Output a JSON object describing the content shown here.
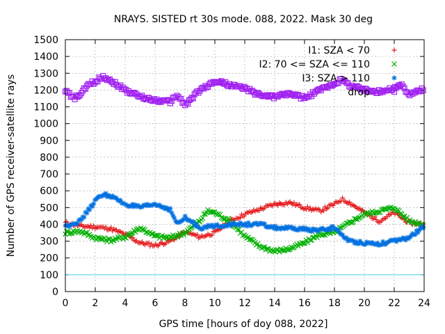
{
  "chart_data": {
    "type": "scatter",
    "title": "NRAYS. SISTED rt 30s mode. 088, 2022. Mask 30 deg",
    "xlabel": "GPS time [hours of doy 088, 2022]",
    "ylabel": "Number of GPS receiver-satellite rays",
    "xlim": [
      0,
      24
    ],
    "ylim": [
      0,
      1500
    ],
    "x_ticks": [
      "0",
      "2",
      "4",
      "6",
      "8",
      "10",
      "12",
      "14",
      "16",
      "18",
      "20",
      "22",
      "24"
    ],
    "y_ticks": [
      "0",
      "100",
      "200",
      "300",
      "400",
      "500",
      "600",
      "700",
      "800",
      "900",
      "1000",
      "1100",
      "1200",
      "1300",
      "1400",
      "1500"
    ],
    "grid": true,
    "legend_position": "top-right",
    "series": [
      {
        "name": "I1: SZA < 70",
        "marker": "plus",
        "color": "#e41a1c",
        "x": [
          0,
          1,
          2,
          3,
          4,
          5,
          6,
          7,
          8,
          9,
          10,
          11,
          12,
          13,
          14,
          15,
          16,
          17,
          18,
          18.5,
          19,
          20,
          21,
          22,
          23,
          24
        ],
        "y": [
          410,
          390,
          385,
          375,
          340,
          290,
          275,
          300,
          355,
          325,
          350,
          420,
          460,
          490,
          520,
          530,
          500,
          480,
          520,
          550,
          530,
          470,
          420,
          470,
          410,
          400
        ]
      },
      {
        "name": "I2: 70 <= SZA <= 110",
        "marker": "cross",
        "color": "#00b000",
        "x": [
          0,
          1,
          2,
          3,
          4,
          5,
          6,
          7,
          8,
          9,
          9.5,
          10,
          11,
          12,
          13,
          14,
          15,
          16,
          17,
          18,
          19,
          20,
          21,
          22,
          23,
          24
        ],
        "y": [
          350,
          360,
          320,
          305,
          325,
          380,
          330,
          320,
          350,
          420,
          480,
          470,
          420,
          330,
          270,
          240,
          255,
          290,
          340,
          350,
          410,
          460,
          480,
          500,
          420,
          400
        ]
      },
      {
        "name": "I3: SZA > 110",
        "marker": "star",
        "color": "#0070e0",
        "x": [
          0,
          1,
          2,
          2.5,
          3,
          4,
          5,
          6,
          7,
          7.5,
          8,
          9,
          10,
          11,
          12,
          13,
          14,
          15,
          16,
          17,
          18,
          19,
          20,
          21,
          22,
          23,
          24
        ],
        "y": [
          390,
          420,
          540,
          580,
          570,
          520,
          500,
          520,
          490,
          400,
          440,
          380,
          390,
          400,
          400,
          400,
          380,
          375,
          370,
          365,
          380,
          300,
          290,
          285,
          300,
          320,
          390
        ]
      },
      {
        "name": "drop",
        "marker": "square",
        "color": "#a020f0",
        "x": [
          0,
          0.5,
          1,
          1.5,
          2,
          2.5,
          3,
          4,
          5,
          6,
          7,
          7.5,
          8,
          9,
          10,
          10.5,
          11,
          12,
          13,
          14,
          15,
          16,
          17,
          18,
          18.5,
          19,
          20,
          21,
          22,
          22.5,
          23,
          24
        ],
        "y": [
          1200,
          1150,
          1170,
          1230,
          1250,
          1280,
          1260,
          1200,
          1160,
          1140,
          1130,
          1170,
          1110,
          1200,
          1250,
          1245,
          1230,
          1210,
          1170,
          1160,
          1180,
          1150,
          1200,
          1240,
          1260,
          1230,
          1200,
          1190,
          1210,
          1230,
          1170,
          1210
        ]
      }
    ],
    "reference_line": {
      "y": 100,
      "color": "#40d0e0"
    }
  }
}
